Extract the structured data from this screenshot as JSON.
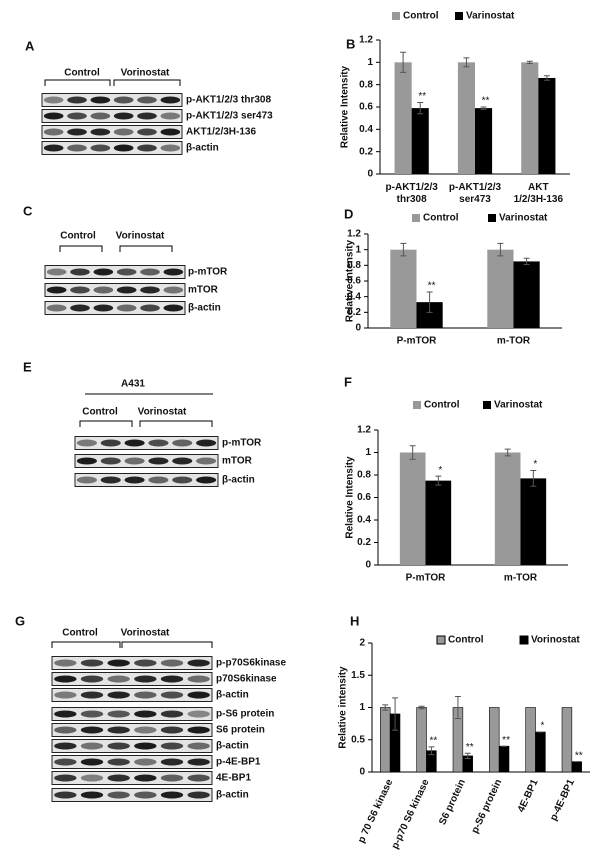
{
  "blots": [
    {
      "label": "A",
      "groups": [
        "Control",
        "Vorinostat"
      ],
      "rows": [
        "p-AKT1/2/3 thr308",
        "p-AKT1/2/3 ser473",
        "AKT1/2/3H-136",
        "β-actin"
      ]
    },
    {
      "label": "C",
      "groups": [
        "Control",
        "Vorinostat"
      ],
      "rows": [
        "p-mTOR",
        "mTOR",
        "β-actin"
      ]
    },
    {
      "label": "E",
      "title": "A431",
      "groups": [
        "Control",
        "Vorinostat"
      ],
      "rows": [
        "p-mTOR",
        "mTOR",
        "β-actin"
      ]
    },
    {
      "label": "G",
      "groups": [
        "Control",
        "Vorinostat"
      ],
      "rows": [
        "p-p70S6kinase",
        "p70S6kinase",
        "β-actin",
        "p-S6  protein",
        "S6  protein",
        "β-actin",
        "p-4E-BP1",
        "4E-BP1",
        "β-actin"
      ]
    }
  ],
  "chart_data": [
    {
      "label": "B",
      "type": "bar",
      "ylabel": "Relative Intensity",
      "categories": [
        [
          "p-AKT1/2/3",
          "thr308"
        ],
        [
          "p-AKT1/2/3",
          "ser473"
        ],
        [
          "AKT",
          "1/2/3H-136"
        ]
      ],
      "series": [
        {
          "name": "Control",
          "color": "#999999",
          "values": [
            1,
            1,
            1
          ],
          "errors": [
            0.09,
            0.04,
            0.01
          ]
        },
        {
          "name": "Varinostat",
          "color": "#000000",
          "values": [
            0.59,
            0.59,
            0.86
          ],
          "errors": [
            0.05,
            0.01,
            0.02
          ],
          "annotations": [
            "**",
            "**",
            null
          ]
        }
      ],
      "ylim": [
        0,
        1.2
      ],
      "yticks": [
        0,
        0.2,
        0.4,
        0.6,
        0.8,
        1,
        1.2
      ]
    },
    {
      "label": "D",
      "type": "bar",
      "ylabel": "Relative Intensity",
      "categories": [
        "P-mTOR",
        "m-TOR"
      ],
      "series": [
        {
          "name": "Control",
          "color": "#999999",
          "values": [
            1,
            1
          ],
          "errors": [
            0.08,
            0.08
          ]
        },
        {
          "name": "Varinostat",
          "color": "#000000",
          "values": [
            0.33,
            0.85
          ],
          "errors": [
            0.13,
            0.04
          ],
          "annotations": [
            "**",
            null
          ]
        }
      ],
      "ylim": [
        0,
        1.2
      ],
      "yticks": [
        0,
        0.2,
        0.4,
        0.6,
        0.8,
        1,
        1.2
      ]
    },
    {
      "label": "F",
      "type": "bar",
      "ylabel": "Relative Intensity",
      "categories": [
        "P-mTOR",
        "m-TOR"
      ],
      "series": [
        {
          "name": "Control",
          "color": "#999999",
          "values": [
            1,
            1
          ],
          "errors": [
            0.06,
            0.03
          ]
        },
        {
          "name": "Varinostat",
          "color": "#000000",
          "values": [
            0.75,
            0.77
          ],
          "errors": [
            0.04,
            0.07
          ],
          "annotations": [
            "*",
            "*"
          ]
        }
      ],
      "ylim": [
        0,
        1.2
      ],
      "yticks": [
        0,
        0.2,
        0.4,
        0.6,
        0.8,
        1,
        1.2
      ]
    },
    {
      "label": "H",
      "type": "bar",
      "ylabel": "Relative intensity",
      "categories": [
        "p 70 S6 kinase",
        "p-p70 S6 kinase",
        "S6  protein",
        "p-S6  protein",
        "4E-BP1",
        "p-4E-BP1"
      ],
      "series": [
        {
          "name": "Control",
          "color": "#999999",
          "values": [
            1,
            1,
            1,
            1,
            1,
            1
          ],
          "errors": [
            0.04,
            0.02,
            0.17,
            0,
            0,
            0
          ]
        },
        {
          "name": "Vorinostat",
          "color": "#000000",
          "values": [
            0.9,
            0.33,
            0.25,
            0.4,
            0.62,
            0.16
          ],
          "errors": [
            0.25,
            0.06,
            0.04,
            0,
            0,
            0
          ],
          "annotations": [
            null,
            "**",
            "**",
            "**",
            "*",
            "**"
          ]
        }
      ],
      "ylim": [
        0,
        2
      ],
      "yticks": [
        0,
        0.5,
        1,
        1.5,
        2
      ]
    }
  ]
}
